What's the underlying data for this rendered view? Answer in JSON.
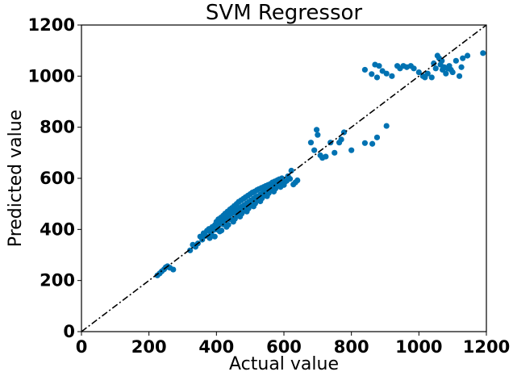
{
  "chart_data": {
    "type": "scatter",
    "title": "SVM Regressor",
    "xlabel": "Actual value",
    "ylabel": "Predicted value",
    "xlim": [
      0,
      1200
    ],
    "ylim": [
      0,
      1200
    ],
    "xticks": [
      "0",
      "200",
      "400",
      "600",
      "800",
      "1000",
      "1200"
    ],
    "yticks": [
      "0",
      "200",
      "400",
      "600",
      "800",
      "1000",
      "1200"
    ],
    "grid": false,
    "marker_color": "#0072b2",
    "reference_line": {
      "x": [
        0,
        1200
      ],
      "y": [
        0,
        1200
      ],
      "style": "dash-dot",
      "color": "#000000"
    },
    "points": [
      [
        225,
        220
      ],
      [
        232,
        228
      ],
      [
        238,
        236
      ],
      [
        245,
        244
      ],
      [
        250,
        252
      ],
      [
        255,
        256
      ],
      [
        262,
        250
      ],
      [
        272,
        243
      ],
      [
        322,
        318
      ],
      [
        330,
        340
      ],
      [
        338,
        332
      ],
      [
        345,
        345
      ],
      [
        352,
        372
      ],
      [
        358,
        360
      ],
      [
        362,
        385
      ],
      [
        368,
        375
      ],
      [
        372,
        395
      ],
      [
        378,
        402
      ],
      [
        384,
        385
      ],
      [
        388,
        410
      ],
      [
        392,
        398
      ],
      [
        396,
        418
      ],
      [
        400,
        430
      ],
      [
        403,
        412
      ],
      [
        406,
        440
      ],
      [
        410,
        420
      ],
      [
        413,
        446
      ],
      [
        416,
        432
      ],
      [
        420,
        454
      ],
      [
        423,
        438
      ],
      [
        426,
        462
      ],
      [
        430,
        446
      ],
      [
        433,
        470
      ],
      [
        436,
        452
      ],
      [
        440,
        478
      ],
      [
        443,
        460
      ],
      [
        446,
        484
      ],
      [
        450,
        466
      ],
      [
        453,
        492
      ],
      [
        456,
        472
      ],
      [
        460,
        500
      ],
      [
        463,
        478
      ],
      [
        466,
        508
      ],
      [
        470,
        484
      ],
      [
        473,
        514
      ],
      [
        476,
        490
      ],
      [
        480,
        520
      ],
      [
        483,
        496
      ],
      [
        486,
        526
      ],
      [
        490,
        502
      ],
      [
        493,
        532
      ],
      [
        496,
        508
      ],
      [
        500,
        538
      ],
      [
        503,
        514
      ],
      [
        506,
        544
      ],
      [
        510,
        520
      ],
      [
        513,
        548
      ],
      [
        516,
        526
      ],
      [
        520,
        554
      ],
      [
        523,
        530
      ],
      [
        526,
        558
      ],
      [
        530,
        536
      ],
      [
        533,
        562
      ],
      [
        536,
        540
      ],
      [
        540,
        566
      ],
      [
        543,
        546
      ],
      [
        546,
        570
      ],
      [
        550,
        550
      ],
      [
        553,
        574
      ],
      [
        556,
        556
      ],
      [
        560,
        578
      ],
      [
        563,
        560
      ],
      [
        566,
        584
      ],
      [
        570,
        564
      ],
      [
        573,
        588
      ],
      [
        576,
        568
      ],
      [
        580,
        592
      ],
      [
        583,
        572
      ],
      [
        586,
        596
      ],
      [
        590,
        576
      ],
      [
        594,
        600
      ],
      [
        598,
        580
      ],
      [
        603,
        586
      ],
      [
        608,
        590
      ],
      [
        612,
        608
      ],
      [
        618,
        598
      ],
      [
        622,
        630
      ],
      [
        628,
        576
      ],
      [
        634,
        584
      ],
      [
        640,
        592
      ],
      [
        400,
        400
      ],
      [
        420,
        420
      ],
      [
        440,
        440
      ],
      [
        460,
        460
      ],
      [
        480,
        480
      ],
      [
        500,
        500
      ],
      [
        520,
        520
      ],
      [
        540,
        540
      ],
      [
        560,
        560
      ],
      [
        580,
        580
      ],
      [
        410,
        392
      ],
      [
        430,
        410
      ],
      [
        450,
        430
      ],
      [
        470,
        450
      ],
      [
        490,
        470
      ],
      [
        510,
        490
      ],
      [
        530,
        510
      ],
      [
        550,
        530
      ],
      [
        570,
        548
      ],
      [
        590,
        566
      ],
      [
        380,
        366
      ],
      [
        395,
        372
      ],
      [
        415,
        396
      ],
      [
        435,
        418
      ],
      [
        455,
        442
      ],
      [
        475,
        462
      ],
      [
        495,
        482
      ],
      [
        515,
        502
      ],
      [
        535,
        522
      ],
      [
        555,
        542
      ],
      [
        575,
        560
      ],
      [
        600,
        574
      ],
      [
        680,
        740
      ],
      [
        690,
        710
      ],
      [
        697,
        790
      ],
      [
        700,
        770
      ],
      [
        708,
        690
      ],
      [
        714,
        680
      ],
      [
        724,
        685
      ],
      [
        738,
        740
      ],
      [
        750,
        700
      ],
      [
        764,
        740
      ],
      [
        770,
        752
      ],
      [
        778,
        780
      ],
      [
        800,
        710
      ],
      [
        840,
        738
      ],
      [
        862,
        735
      ],
      [
        876,
        760
      ],
      [
        904,
        805
      ],
      [
        840,
        1025
      ],
      [
        860,
        1008
      ],
      [
        870,
        1045
      ],
      [
        876,
        995
      ],
      [
        882,
        1040
      ],
      [
        892,
        1020
      ],
      [
        904,
        1010
      ],
      [
        920,
        1000
      ],
      [
        936,
        1040
      ],
      [
        944,
        1030
      ],
      [
        954,
        1040
      ],
      [
        964,
        1035
      ],
      [
        976,
        1040
      ],
      [
        985,
        1030
      ],
      [
        1000,
        1015
      ],
      [
        1012,
        1000
      ],
      [
        1018,
        995
      ],
      [
        1026,
        1010
      ],
      [
        1038,
        995
      ],
      [
        1044,
        1050
      ],
      [
        1050,
        1030
      ],
      [
        1055,
        1080
      ],
      [
        1060,
        1070
      ],
      [
        1064,
        1045
      ],
      [
        1068,
        1060
      ],
      [
        1070,
        1025
      ],
      [
        1075,
        1035
      ],
      [
        1080,
        1010
      ],
      [
        1085,
        1030
      ],
      [
        1090,
        1040
      ],
      [
        1095,
        1025
      ],
      [
        1100,
        1015
      ],
      [
        1110,
        1060
      ],
      [
        1120,
        1000
      ],
      [
        1126,
        1035
      ],
      [
        1130,
        1070
      ],
      [
        1144,
        1080
      ],
      [
        1190,
        1090
      ]
    ]
  }
}
